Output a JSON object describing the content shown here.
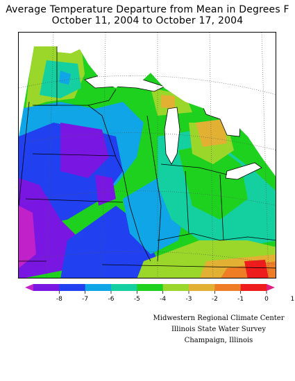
{
  "title": {
    "line1": "Average Temperature Departure from Mean in Degrees F",
    "line2": "October 11, 2004 to October 17, 2004"
  },
  "legend": {
    "labels": [
      "-8",
      "-7",
      "-6",
      "-5",
      "-4",
      "-3",
      "-2",
      "-1",
      "0",
      "1"
    ],
    "colors": [
      "#c021c8",
      "#7a16e2",
      "#2140f0",
      "#0fa5e6",
      "#14cfa0",
      "#1ed11e",
      "#9ad72a",
      "#e2b033",
      "#ef7d26",
      "#ee1c1c",
      "#e02080"
    ]
  },
  "colors": {
    "lake": "#ffffff",
    "land_frame": "#000000",
    "state_line": "#000000",
    "grid_line": "#555555"
  },
  "credit": {
    "line1": "Midwestern Regional Climate Center",
    "line2": "Illinois State Water Survey",
    "line3": "Champaign, Illinois"
  }
}
